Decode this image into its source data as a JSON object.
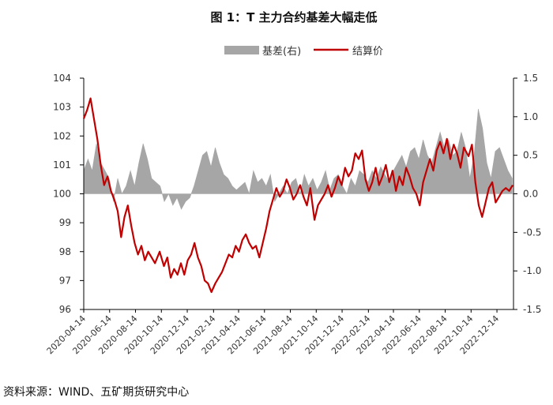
{
  "chart_data": {
    "type": "line",
    "title": "图 1：T 主力合约基差大幅走低",
    "legend": [
      {
        "name": "基差(右)",
        "kind": "area",
        "color": "#a6a6a6"
      },
      {
        "name": "结算价",
        "kind": "line",
        "color": "#c00000"
      }
    ],
    "legend_position": "top-center",
    "grid": false,
    "x_ticks": [
      "2020-04-14",
      "2020-06-14",
      "2020-08-14",
      "2020-10-14",
      "2020-12-14",
      "2021-02-14",
      "2021-04-14",
      "2021-06-14",
      "2021-08-14",
      "2021-10-14",
      "2021-12-14",
      "2022-02-14",
      "2022-04-14",
      "2022-06-14",
      "2022-08-14",
      "2022-10-14",
      "2022-12-14"
    ],
    "y_left": {
      "min": 96,
      "max": 104,
      "ticks": [
        "96",
        "97",
        "98",
        "99",
        "100",
        "101",
        "102",
        "103",
        "104"
      ]
    },
    "y_right": {
      "min": -1.5,
      "max": 1.5,
      "ticks": [
        "-1.5",
        "-1.0",
        "-0.5",
        "0.0",
        "0.5",
        "1.0",
        "1.5"
      ]
    },
    "series": [
      {
        "name": "结算价",
        "axis": "left",
        "color": "#c00000",
        "x": [
          "2020-04-14",
          "2020-04-22",
          "2020-04-30",
          "2020-05-08",
          "2020-05-16",
          "2020-05-24",
          "2020-06-01",
          "2020-06-09",
          "2020-06-17",
          "2020-06-25",
          "2020-07-03",
          "2020-07-11",
          "2020-07-19",
          "2020-07-27",
          "2020-08-04",
          "2020-08-12",
          "2020-08-20",
          "2020-08-28",
          "2020-09-05",
          "2020-09-13",
          "2020-09-21",
          "2020-09-29",
          "2020-10-10",
          "2020-10-20",
          "2020-10-28",
          "2020-11-05",
          "2020-11-13",
          "2020-11-21",
          "2020-11-29",
          "2020-12-07",
          "2020-12-15",
          "2020-12-23",
          "2020-12-31",
          "2021-01-08",
          "2021-01-16",
          "2021-01-24",
          "2021-02-01",
          "2021-02-09",
          "2021-02-18",
          "2021-02-26",
          "2021-03-06",
          "2021-03-14",
          "2021-03-22",
          "2021-03-30",
          "2021-04-07",
          "2021-04-15",
          "2021-04-23",
          "2021-05-01",
          "2021-05-09",
          "2021-05-17",
          "2021-05-25",
          "2021-06-02",
          "2021-06-10",
          "2021-06-18",
          "2021-06-26",
          "2021-07-04",
          "2021-07-12",
          "2021-07-20",
          "2021-07-28",
          "2021-08-05",
          "2021-08-13",
          "2021-08-21",
          "2021-08-29",
          "2021-09-06",
          "2021-09-14",
          "2021-09-22",
          "2021-09-30",
          "2021-10-10",
          "2021-10-18",
          "2021-10-26",
          "2021-11-03",
          "2021-11-11",
          "2021-11-19",
          "2021-11-27",
          "2021-12-05",
          "2021-12-13",
          "2021-12-21",
          "2021-12-29",
          "2022-01-06",
          "2022-01-14",
          "2022-01-22",
          "2022-01-30",
          "2022-02-07",
          "2022-02-15",
          "2022-02-23",
          "2022-03-03",
          "2022-03-11",
          "2022-03-19",
          "2022-03-27",
          "2022-04-04",
          "2022-04-12",
          "2022-04-20",
          "2022-04-28",
          "2022-05-06",
          "2022-05-14",
          "2022-05-22",
          "2022-05-30",
          "2022-06-07",
          "2022-06-15",
          "2022-06-23",
          "2022-07-01",
          "2022-07-09",
          "2022-07-17",
          "2022-07-25",
          "2022-08-02",
          "2022-08-10",
          "2022-08-18",
          "2022-08-26",
          "2022-09-03",
          "2022-09-11",
          "2022-09-19",
          "2022-09-27",
          "2022-10-08",
          "2022-10-16",
          "2022-10-24",
          "2022-11-01",
          "2022-11-09",
          "2022-11-17",
          "2022-11-25",
          "2022-12-03",
          "2022-12-11",
          "2022-12-19",
          "2022-12-27",
          "2023-01-04",
          "2023-01-12",
          "2023-01-20"
        ],
        "values": [
          102.6,
          102.9,
          103.3,
          102.6,
          101.9,
          101.0,
          100.3,
          100.6,
          100.1,
          99.8,
          99.4,
          98.5,
          99.2,
          99.6,
          98.9,
          98.3,
          97.9,
          98.2,
          97.7,
          98.0,
          97.8,
          97.6,
          98.0,
          97.5,
          97.8,
          97.1,
          97.4,
          97.2,
          97.6,
          97.2,
          97.7,
          97.9,
          98.3,
          97.8,
          97.5,
          97.0,
          96.9,
          96.6,
          96.9,
          97.1,
          97.3,
          97.6,
          97.9,
          97.8,
          98.2,
          98.0,
          98.4,
          98.6,
          98.3,
          98.1,
          98.2,
          97.8,
          98.3,
          98.8,
          99.4,
          99.8,
          100.2,
          99.9,
          100.1,
          100.5,
          100.2,
          99.8,
          100.0,
          100.3,
          99.9,
          99.6,
          100.2,
          99.1,
          99.6,
          99.8,
          100.0,
          100.3,
          99.9,
          100.2,
          100.6,
          100.3,
          100.9,
          100.6,
          100.8,
          101.4,
          101.2,
          101.5,
          100.5,
          100.1,
          100.4,
          100.9,
          100.3,
          100.6,
          101.0,
          100.4,
          100.8,
          100.1,
          100.6,
          100.3,
          100.9,
          100.6,
          100.2,
          100.0,
          99.6,
          100.4,
          100.8,
          101.2,
          100.8,
          101.5,
          101.8,
          101.4,
          101.9,
          101.2,
          101.7,
          101.4,
          100.9,
          101.6,
          101.3,
          101.7,
          100.4,
          99.6,
          99.2,
          99.7,
          100.2,
          100.4,
          99.7,
          99.9,
          100.1,
          100.2,
          100.1,
          100.3
        ]
      },
      {
        "name": "基差(右)",
        "axis": "right",
        "color": "#a6a6a6",
        "x": [
          "2020-04-14",
          "2020-04-24",
          "2020-05-04",
          "2020-05-14",
          "2020-05-24",
          "2020-06-03",
          "2020-06-13",
          "2020-06-23",
          "2020-07-03",
          "2020-07-13",
          "2020-07-23",
          "2020-08-02",
          "2020-08-12",
          "2020-08-22",
          "2020-09-01",
          "2020-09-11",
          "2020-09-21",
          "2020-10-01",
          "2020-10-11",
          "2020-10-21",
          "2020-10-31",
          "2020-11-10",
          "2020-11-20",
          "2020-11-30",
          "2020-12-10",
          "2020-12-20",
          "2020-12-30",
          "2021-01-09",
          "2021-01-19",
          "2021-01-29",
          "2021-02-08",
          "2021-02-18",
          "2021-02-28",
          "2021-03-10",
          "2021-03-20",
          "2021-03-30",
          "2021-04-09",
          "2021-04-19",
          "2021-04-29",
          "2021-05-09",
          "2021-05-19",
          "2021-05-29",
          "2021-06-08",
          "2021-06-18",
          "2021-06-28",
          "2021-07-08",
          "2021-07-18",
          "2021-07-28",
          "2021-08-07",
          "2021-08-17",
          "2021-08-27",
          "2021-09-06",
          "2021-09-16",
          "2021-09-26",
          "2021-10-06",
          "2021-10-16",
          "2021-10-26",
          "2021-11-05",
          "2021-11-15",
          "2021-11-25",
          "2021-12-05",
          "2021-12-15",
          "2021-12-25",
          "2022-01-04",
          "2022-01-14",
          "2022-01-24",
          "2022-02-03",
          "2022-02-13",
          "2022-02-23",
          "2022-03-05",
          "2022-03-15",
          "2022-03-25",
          "2022-04-04",
          "2022-04-14",
          "2022-04-24",
          "2022-05-04",
          "2022-05-14",
          "2022-05-24",
          "2022-06-03",
          "2022-06-13",
          "2022-06-23",
          "2022-07-03",
          "2022-07-13",
          "2022-07-23",
          "2022-08-02",
          "2022-08-12",
          "2022-08-22",
          "2022-09-01",
          "2022-09-11",
          "2022-09-21",
          "2022-10-01",
          "2022-10-11",
          "2022-10-21",
          "2022-10-31",
          "2022-11-10",
          "2022-11-20",
          "2022-11-30",
          "2022-12-10",
          "2022-12-20",
          "2022-12-30",
          "2023-01-09",
          "2023-01-19"
        ],
        "values": [
          0.3,
          0.45,
          0.3,
          0.65,
          0.4,
          0.3,
          0.2,
          -0.1,
          0.2,
          0.0,
          0.1,
          0.3,
          0.1,
          0.4,
          0.65,
          0.45,
          0.2,
          0.15,
          0.1,
          -0.1,
          0.0,
          -0.15,
          -0.05,
          -0.2,
          -0.1,
          -0.05,
          0.1,
          0.3,
          0.5,
          0.55,
          0.35,
          0.6,
          0.4,
          0.25,
          0.2,
          0.1,
          0.05,
          0.1,
          0.15,
          0.0,
          0.3,
          0.15,
          0.2,
          0.1,
          0.25,
          -0.1,
          0.0,
          0.1,
          0.0,
          0.15,
          0.2,
          0.0,
          0.25,
          0.1,
          0.2,
          0.05,
          0.15,
          0.3,
          0.05,
          0.2,
          0.25,
          0.1,
          0.0,
          0.2,
          0.1,
          0.3,
          0.25,
          0.15,
          0.3,
          0.2,
          0.35,
          0.25,
          0.15,
          0.3,
          0.4,
          0.5,
          0.35,
          0.55,
          0.6,
          0.45,
          0.7,
          0.5,
          0.4,
          0.6,
          0.8,
          0.6,
          0.7,
          0.5,
          0.55,
          0.8,
          0.6,
          0.2,
          0.5,
          1.1,
          0.85,
          0.4,
          0.2,
          0.55,
          0.6,
          0.45,
          0.3,
          0.2
        ]
      }
    ]
  },
  "source": "资料来源：WIND、五矿期货研究中心"
}
